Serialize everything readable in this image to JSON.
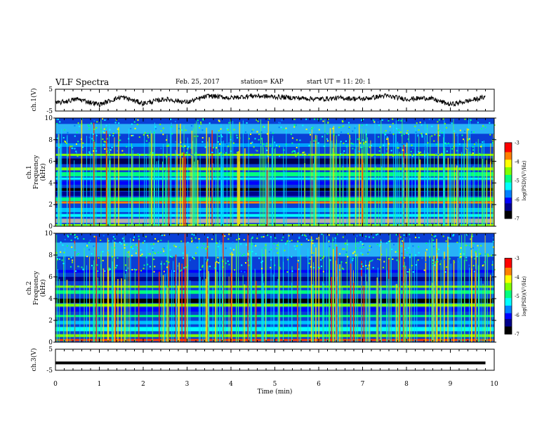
{
  "header": {
    "title": "VLF Spectra",
    "date": "Feb. 25, 2017",
    "station": "station= KAP",
    "start": "start  UT =   11: 20: 1"
  },
  "chart_data": [
    {
      "type": "line",
      "name": "ch1-waveform",
      "ylabel": "ch.1(V)",
      "ylim": [
        -5,
        5
      ],
      "y_ticks": [
        "5",
        "-5"
      ],
      "xlim": [
        0,
        10
      ],
      "note_series": "noisy trace near zero, approx envelope values",
      "x": [
        0,
        0.5,
        1.0,
        1.5,
        2.0,
        2.5,
        3.0,
        3.5,
        4.0,
        4.5,
        5.0,
        5.5,
        6.0,
        6.5,
        7.0,
        7.5,
        8.0,
        8.5,
        9.0,
        9.5,
        9.8
      ],
      "values": [
        -1.5,
        0.5,
        -2.0,
        1.5,
        -1.5,
        0.5,
        -1.0,
        2.0,
        1.0,
        2.0,
        1.5,
        1.0,
        0.5,
        1.0,
        0.5,
        2.0,
        0.5,
        1.0,
        -2.0,
        0.0,
        1.5
      ]
    },
    {
      "type": "heatmap",
      "name": "ch1-spectrogram",
      "ylabel": "ch.1 Frequency (kHz)",
      "xlim": [
        0,
        10
      ],
      "ylim": [
        0,
        10
      ],
      "y_ticks": [
        "0",
        "2",
        "4",
        "6",
        "8",
        "10"
      ],
      "colorbar": {
        "label": "log(PSD)(V²/Hz)",
        "range": [
          -7,
          -3
        ],
        "ticks": [
          "-3",
          "-4",
          "-5",
          "-6",
          "-7"
        ]
      }
    },
    {
      "type": "heatmap",
      "name": "ch2-spectrogram",
      "ylabel": "ch.2 Frequency (kHz)",
      "xlim": [
        0,
        10
      ],
      "ylim": [
        0,
        10
      ],
      "y_ticks": [
        "0",
        "2",
        "4",
        "6",
        "8",
        "10"
      ],
      "colorbar": {
        "label": "log(PSD)(V²/Hz)",
        "range": [
          -7,
          -3
        ],
        "ticks": [
          "-3",
          "-4",
          "-5",
          "-6",
          "-7"
        ]
      }
    },
    {
      "type": "line",
      "name": "ch3-waveform",
      "ylabel": "ch.3(V)",
      "ylim": [
        -5,
        5
      ],
      "y_ticks": [
        "5",
        "-5"
      ],
      "xlim": [
        0,
        9.8
      ],
      "x": [
        0,
        9.8
      ],
      "values": [
        -1.5,
        -1.5
      ]
    }
  ],
  "xaxis": {
    "label": "Time  (min)",
    "ticks": [
      "0",
      "1",
      "2",
      "3",
      "4",
      "5",
      "6",
      "7",
      "8",
      "9",
      "10"
    ]
  },
  "colors": {
    "colormap": [
      "#000000",
      "#00008b",
      "#0000ff",
      "#0080ff",
      "#00ffff",
      "#00ff80",
      "#80ff00",
      "#ffff00",
      "#ff8000",
      "#ff0000",
      "#ffffff"
    ]
  }
}
